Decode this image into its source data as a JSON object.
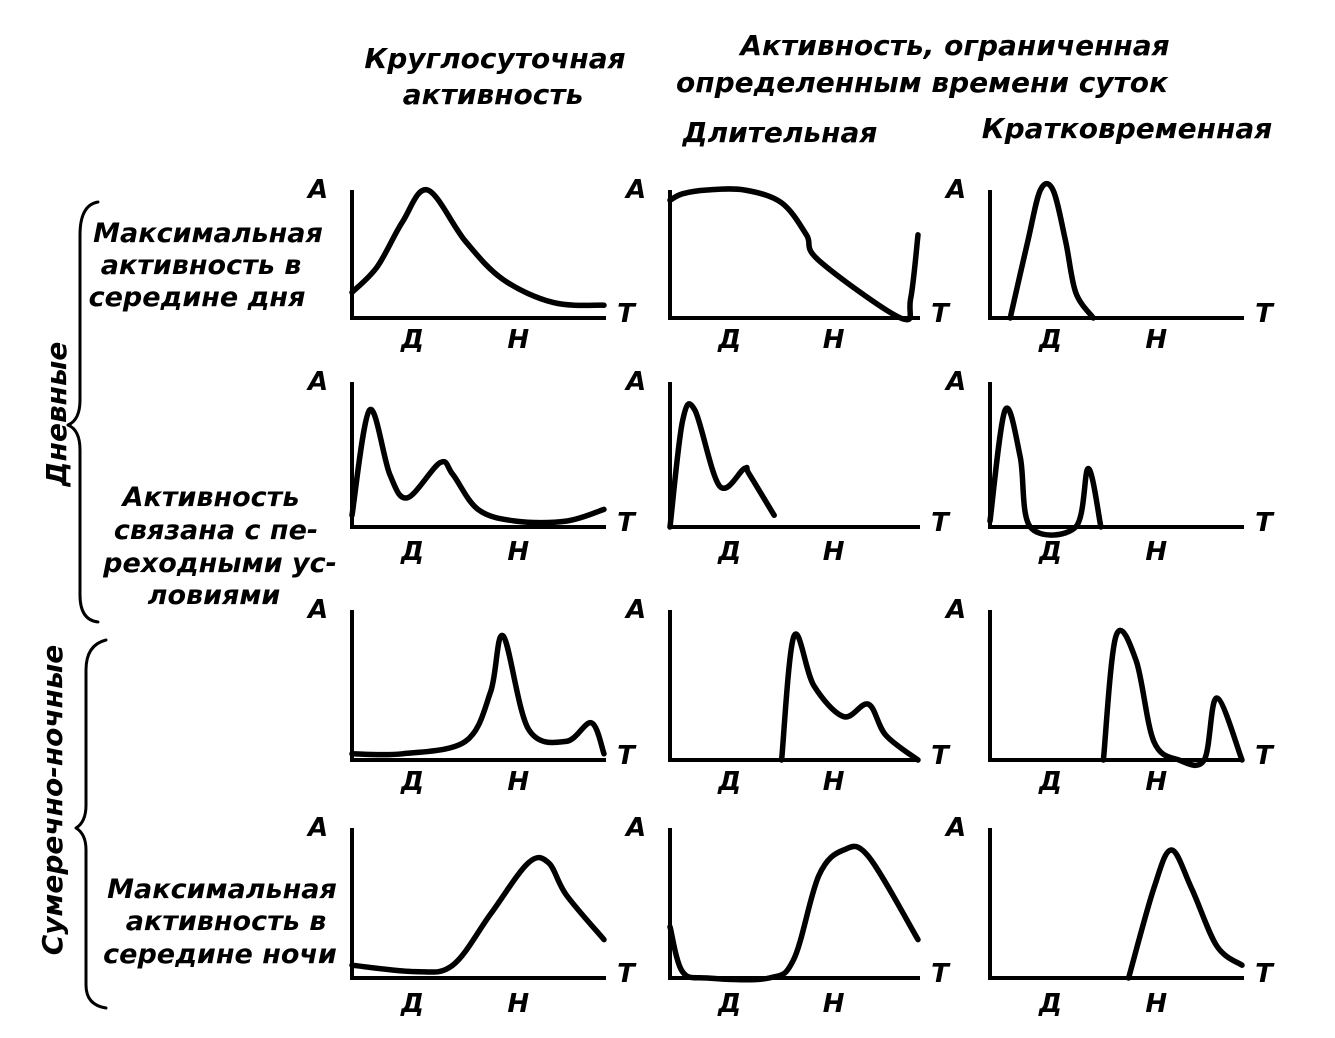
{
  "headers": {
    "col1": [
      "Круглосуточная",
      "активность"
    ],
    "group": [
      "Активность, ограниченная",
      "определенным времени суток"
    ],
    "col2": "Длительная",
    "col3": "Кратковременная"
  },
  "row_labels": {
    "r1": [
      "Максимальная",
      "активность в",
      "середине дня"
    ],
    "r2": [
      "Активность",
      "связана с пе-",
      "реходными ус-",
      "ловиями"
    ],
    "r4": [
      "Максимальная",
      "активность в",
      "середине ночи"
    ]
  },
  "group_labels": {
    "day": "Дневные",
    "night": "Сумеречно-ночные"
  },
  "axis_labels": {
    "y": "А",
    "x": "Т",
    "day": "Д",
    "night": "Н"
  },
  "chart_data": {
    "type": "line",
    "x_ticks": [
      "Д",
      "Н"
    ],
    "ylabel": "А",
    "xlabel": "Т",
    "panels": [
      {
        "row": 1,
        "col": 1,
        "x": [
          0,
          0.1,
          0.2,
          0.3,
          0.45,
          0.6,
          0.8,
          1
        ],
        "y": [
          0.2,
          0.4,
          0.75,
          1,
          0.6,
          0.3,
          0.12,
          0.1
        ]
      },
      {
        "row": 1,
        "col": 2,
        "x": [
          0,
          0.05,
          0.15,
          0.3,
          0.45,
          0.55,
          0.6,
          0.93,
          0.97,
          1
        ],
        "y": [
          0.92,
          0.97,
          1,
          1,
          0.9,
          0.65,
          0.45,
          0,
          0.15,
          0.65
        ]
      },
      {
        "row": 1,
        "col": 3,
        "x": [
          0.08,
          0.15,
          0.2,
          0.25,
          0.3,
          0.34,
          0.41
        ],
        "y": [
          0,
          0.6,
          1,
          1,
          0.6,
          0.2,
          0
        ]
      },
      {
        "row": 2,
        "col": 1,
        "x": [
          0,
          0.07,
          0.15,
          0.22,
          0.35,
          0.4,
          0.5,
          0.65,
          0.85,
          1
        ],
        "y": [
          0.1,
          1,
          0.45,
          0.25,
          0.55,
          0.45,
          0.15,
          0.05,
          0.05,
          0.15
        ]
      },
      {
        "row": 2,
        "col": 2,
        "x": [
          0,
          0.05,
          0.1,
          0.2,
          0.3,
          0.32,
          0.42
        ],
        "y": [
          0,
          0.9,
          1,
          0.35,
          0.5,
          0.45,
          0.1
        ]
      },
      {
        "row": 2,
        "col": 3,
        "x": [
          0,
          0.06,
          0.12,
          0.16,
          0.34,
          0.39,
          0.44
        ],
        "y": [
          0.05,
          1,
          0.6,
          0,
          0,
          0.5,
          0
        ]
      },
      {
        "row": 3,
        "col": 1,
        "x": [
          0,
          0.2,
          0.45,
          0.55,
          0.6,
          0.7,
          0.85,
          0.95,
          1
        ],
        "y": [
          0.05,
          0.05,
          0.15,
          0.55,
          1,
          0.25,
          0.15,
          0.3,
          0.05
        ]
      },
      {
        "row": 3,
        "col": 2,
        "x": [
          0.45,
          0.5,
          0.58,
          0.7,
          0.8,
          0.87,
          1
        ],
        "y": [
          0,
          1,
          0.6,
          0.35,
          0.45,
          0.2,
          0
        ]
      },
      {
        "row": 3,
        "col": 3,
        "x": [
          0.45,
          0.5,
          0.58,
          0.65,
          0.75,
          0.85,
          0.9,
          1
        ],
        "y": [
          0,
          1,
          0.8,
          0.15,
          0,
          0,
          0.5,
          0
        ]
      },
      {
        "row": 4,
        "col": 1,
        "x": [
          0,
          0.25,
          0.4,
          0.55,
          0.7,
          0.78,
          0.85,
          1
        ],
        "y": [
          0.1,
          0.05,
          0.1,
          0.5,
          0.9,
          0.9,
          0.65,
          0.3
        ]
      },
      {
        "row": 4,
        "col": 2,
        "x": [
          0,
          0.05,
          0.15,
          0.4,
          0.5,
          0.6,
          0.7,
          0.8,
          1
        ],
        "y": [
          0.4,
          0.05,
          0,
          0,
          0.15,
          0.8,
          1,
          0.95,
          0.3
        ]
      },
      {
        "row": 4,
        "col": 3,
        "x": [
          0.55,
          0.65,
          0.72,
          0.8,
          0.9,
          1
        ],
        "y": [
          0,
          0.7,
          1,
          0.7,
          0.25,
          0.1
        ]
      }
    ]
  }
}
